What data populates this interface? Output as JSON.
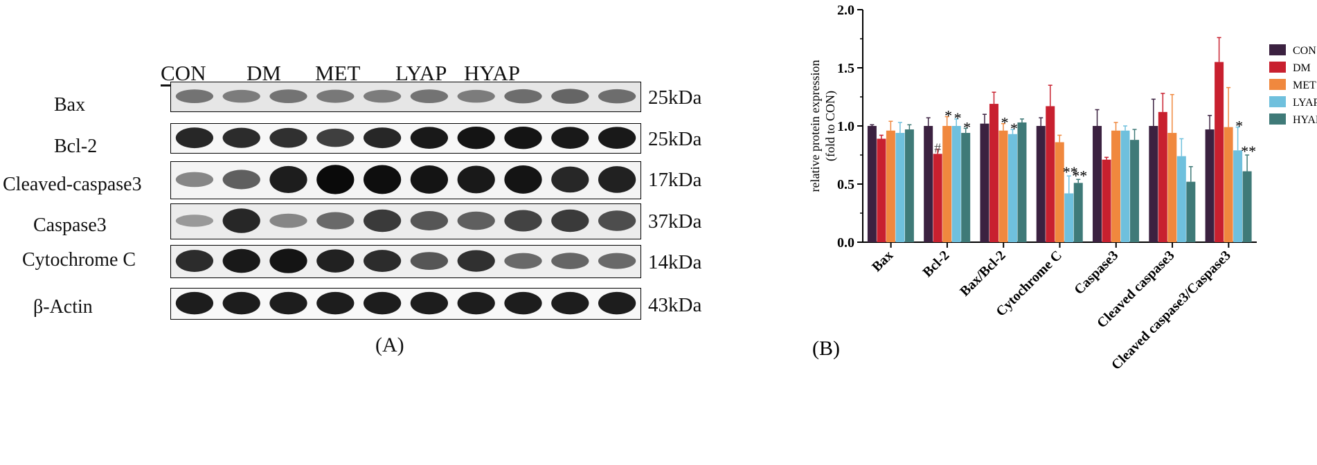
{
  "panel_a": {
    "label": "(A)",
    "lanes": [
      "CON",
      "DM",
      "MET",
      "LYAP",
      "HYAP"
    ],
    "rows": [
      {
        "protein": "Bax",
        "mw": "25kDa",
        "intensity": [
          0.45,
          0.4,
          0.45,
          0.42,
          0.4,
          0.45,
          0.4,
          0.48,
          0.52,
          0.48
        ]
      },
      {
        "protein": "Bcl-2",
        "mw": "25kDa",
        "intensity": [
          0.85,
          0.82,
          0.8,
          0.72,
          0.85,
          0.92,
          0.95,
          0.95,
          0.92,
          0.92
        ]
      },
      {
        "protein": "Cleaved-caspase3",
        "mw": "17kDa",
        "intensity": [
          0.35,
          0.55,
          0.9,
          1.0,
          0.98,
          0.95,
          0.92,
          0.95,
          0.85,
          0.88
        ]
      },
      {
        "protein": "Caspase3",
        "mw": "37kDa",
        "intensity": [
          0.25,
          0.85,
          0.35,
          0.5,
          0.75,
          0.6,
          0.55,
          0.7,
          0.75,
          0.65
        ]
      },
      {
        "protein": "Cytochrome C",
        "mw": "14kDa",
        "intensity": [
          0.82,
          0.92,
          0.95,
          0.88,
          0.82,
          0.6,
          0.8,
          0.5,
          0.52,
          0.5
        ]
      },
      {
        "protein": "β-Actin",
        "mw": "43kDa",
        "intensity": [
          0.9,
          0.9,
          0.9,
          0.9,
          0.9,
          0.9,
          0.9,
          0.9,
          0.9,
          0.9
        ]
      }
    ]
  },
  "panel_b": {
    "label": "(B)"
  },
  "chart_data": {
    "type": "bar",
    "ylabel": "relative protein expression\n(fold to CON)",
    "ylim": [
      0,
      2.0
    ],
    "yticks": [
      "0.0",
      "0.5",
      "1.0",
      "1.5",
      "2.0"
    ],
    "categories": [
      "Bax",
      "Bcl-2",
      "Bax/Bcl-2",
      "Cytochrome C",
      "Caspase3",
      "Cleaved caspase3",
      "Cleaved caspase3/Caspase3"
    ],
    "legend_position": "right",
    "series": [
      {
        "name": "CON",
        "color": "#3b2140",
        "values": [
          1.0,
          1.0,
          1.02,
          1.0,
          1.0,
          1.0,
          0.97
        ],
        "errors": [
          0.01,
          0.07,
          0.08,
          0.07,
          0.14,
          0.23,
          0.12
        ],
        "marks": [
          "",
          "",
          "",
          "",
          "",
          "",
          ""
        ]
      },
      {
        "name": "DM",
        "color": "#c8202f",
        "values": [
          0.89,
          0.76,
          1.19,
          1.17,
          0.71,
          1.12,
          1.55
        ],
        "errors": [
          0.03,
          0.04,
          0.1,
          0.18,
          0.02,
          0.16,
          0.21
        ],
        "marks": [
          "",
          "#",
          "",
          "",
          "",
          "",
          ""
        ]
      },
      {
        "name": "MET",
        "color": "#f0883e",
        "values": [
          0.96,
          1.0,
          0.96,
          0.86,
          0.96,
          0.94,
          0.99
        ],
        "errors": [
          0.08,
          0.08,
          0.06,
          0.06,
          0.07,
          0.33,
          0.34
        ],
        "marks": [
          "",
          "*",
          "*",
          "",
          "",
          "",
          ""
        ]
      },
      {
        "name": "LYAP",
        "color": "#6fc0dd",
        "values": [
          0.94,
          1.0,
          0.93,
          0.42,
          0.96,
          0.74,
          0.79
        ],
        "errors": [
          0.09,
          0.06,
          0.04,
          0.15,
          0.04,
          0.15,
          0.2
        ],
        "marks": [
          "",
          "*",
          "*",
          "**",
          "",
          "",
          "*"
        ]
      },
      {
        "name": "HYAP",
        "color": "#3f7a78",
        "values": [
          0.97,
          0.94,
          1.03,
          0.51,
          0.88,
          0.52,
          0.61
        ],
        "errors": [
          0.04,
          0.04,
          0.03,
          0.03,
          0.09,
          0.13,
          0.14
        ],
        "marks": [
          "",
          "*",
          "",
          "**",
          "",
          "",
          "**"
        ]
      }
    ]
  }
}
